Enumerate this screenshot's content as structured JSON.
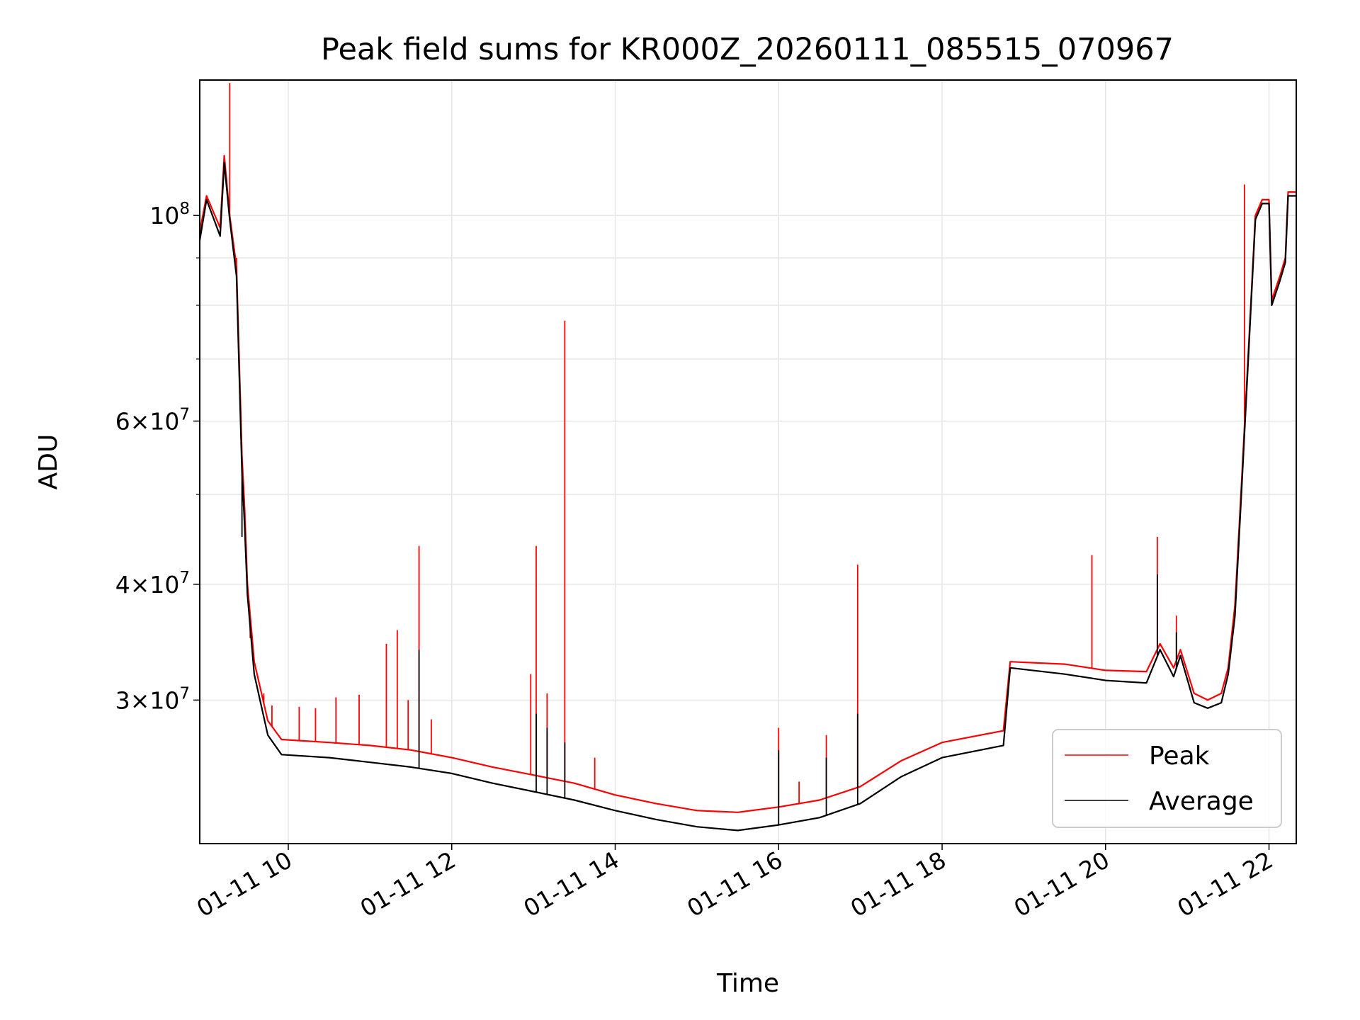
{
  "chart_data": {
    "type": "line",
    "title": "Peak field sums for KR000Z_20260111_085515_070967",
    "xlabel": "Time",
    "ylabel": "ADU",
    "yscale": "log",
    "xlim": [
      "01-11 08:55",
      "01-11 22:20"
    ],
    "ylim": [
      21000000,
      140000000
    ],
    "grid": true,
    "legend_position": "lower-right",
    "x_ticks": [
      {
        "value": "01-11 10:00",
        "label": "01-11 10"
      },
      {
        "value": "01-11 12:00",
        "label": "01-11 12"
      },
      {
        "value": "01-11 14:00",
        "label": "01-11 14"
      },
      {
        "value": "01-11 16:00",
        "label": "01-11 16"
      },
      {
        "value": "01-11 18:00",
        "label": "01-11 18"
      },
      {
        "value": "01-11 20:00",
        "label": "01-11 20"
      },
      {
        "value": "01-11 22:00",
        "label": "01-11 22"
      }
    ],
    "y_ticks_major": [
      {
        "value": 30000000,
        "mant": "3",
        "exp": "7"
      },
      {
        "value": 40000000,
        "mant": "4",
        "exp": "7"
      },
      {
        "value": 60000000,
        "mant": "6",
        "exp": "7"
      },
      {
        "value": 100000000,
        "mant": "",
        "exp": "8"
      }
    ],
    "y_ticks_minor": [
      50000000,
      70000000,
      80000000,
      90000000
    ],
    "series": [
      {
        "name": "Peak",
        "color": "#ff0000",
        "points": [
          [
            "01-11 08:55",
            96000000
          ],
          [
            "01-11 09:00",
            105000000
          ],
          [
            "01-11 09:10",
            97000000
          ],
          [
            "01-11 09:13",
            116000000
          ],
          [
            "01-11 09:17",
            100000000
          ],
          [
            "01-11 09:22",
            88000000
          ],
          [
            "01-11 09:26",
            55000000
          ],
          [
            "01-11 09:28",
            48000000
          ],
          [
            "01-11 09:30",
            40000000
          ],
          [
            "01-11 09:35",
            33000000
          ],
          [
            "01-11 09:45",
            28500000
          ],
          [
            "01-11 09:55",
            27200000
          ],
          [
            "01-11 10:30",
            27000000
          ],
          [
            "01-11 11:00",
            26800000
          ],
          [
            "01-11 11:30",
            26500000
          ],
          [
            "01-11 12:00",
            26000000
          ],
          [
            "01-11 12:30",
            25400000
          ],
          [
            "01-11 13:00",
            24900000
          ],
          [
            "01-11 13:30",
            24400000
          ],
          [
            "01-11 14:00",
            23700000
          ],
          [
            "01-11 14:30",
            23200000
          ],
          [
            "01-11 15:00",
            22800000
          ],
          [
            "01-11 15:30",
            22700000
          ],
          [
            "01-11 16:00",
            23000000
          ],
          [
            "01-11 16:30",
            23400000
          ],
          [
            "01-11 17:00",
            24200000
          ],
          [
            "01-11 17:30",
            25800000
          ],
          [
            "01-11 18:00",
            27000000
          ],
          [
            "01-11 18:45",
            27800000
          ],
          [
            "01-11 18:50",
            33000000
          ],
          [
            "01-11 19:30",
            32800000
          ],
          [
            "01-11 20:00",
            32300000
          ],
          [
            "01-11 20:30",
            32200000
          ],
          [
            "01-11 20:40",
            34500000
          ],
          [
            "01-11 20:50",
            32500000
          ],
          [
            "01-11 20:55",
            34000000
          ],
          [
            "01-11 21:05",
            30500000
          ],
          [
            "01-11 21:15",
            30000000
          ],
          [
            "01-11 21:25",
            30500000
          ],
          [
            "01-11 21:30",
            32500000
          ],
          [
            "01-11 21:35",
            38000000
          ],
          [
            "01-11 21:40",
            52000000
          ],
          [
            "01-11 21:45",
            72000000
          ],
          [
            "01-11 21:50",
            100000000
          ],
          [
            "01-11 21:55",
            104000000
          ],
          [
            "01-11 22:00",
            104000000
          ],
          [
            "01-11 22:02",
            81000000
          ],
          [
            "01-11 22:08",
            86000000
          ],
          [
            "01-11 22:12",
            90000000
          ],
          [
            "01-11 22:14",
            106000000
          ],
          [
            "01-11 22:20",
            106000000
          ]
        ],
        "spikes": [
          [
            "01-11 09:17",
            139000000
          ],
          [
            "01-11 09:22",
            90000000
          ],
          [
            "01-11 09:32",
            35000000
          ],
          [
            "01-11 09:42",
            30500000
          ],
          [
            "01-11 09:48",
            29600000
          ],
          [
            "01-11 10:08",
            29500000
          ],
          [
            "01-11 10:20",
            29400000
          ],
          [
            "01-11 10:35",
            30200000
          ],
          [
            "01-11 10:52",
            30400000
          ],
          [
            "01-11 11:12",
            34500000
          ],
          [
            "01-11 11:20",
            35700000
          ],
          [
            "01-11 11:28",
            30000000
          ],
          [
            "01-11 11:36",
            44000000
          ],
          [
            "01-11 11:45",
            28600000
          ],
          [
            "01-11 12:58",
            32000000
          ],
          [
            "01-11 13:02",
            44000000
          ],
          [
            "01-11 13:10",
            30500000
          ],
          [
            "01-11 13:23",
            77000000
          ],
          [
            "01-11 13:45",
            26000000
          ],
          [
            "01-11 16:00",
            28000000
          ],
          [
            "01-11 16:15",
            24500000
          ],
          [
            "01-11 16:35",
            27500000
          ],
          [
            "01-11 16:58",
            42000000
          ],
          [
            "01-11 19:50",
            43000000
          ],
          [
            "01-11 20:38",
            45000000
          ],
          [
            "01-11 20:52",
            37000000
          ],
          [
            "01-11 21:42",
            108000000
          ]
        ]
      },
      {
        "name": "Average",
        "color": "#000000",
        "points": [
          [
            "01-11 08:55",
            94000000
          ],
          [
            "01-11 09:00",
            104000000
          ],
          [
            "01-11 09:10",
            95000000
          ],
          [
            "01-11 09:13",
            114000000
          ],
          [
            "01-11 09:17",
            99000000
          ],
          [
            "01-11 09:22",
            86000000
          ],
          [
            "01-11 09:26",
            53000000
          ],
          [
            "01-11 09:28",
            46000000
          ],
          [
            "01-11 09:30",
            39000000
          ],
          [
            "01-11 09:35",
            32000000
          ],
          [
            "01-11 09:45",
            27500000
          ],
          [
            "01-11 09:55",
            26200000
          ],
          [
            "01-11 10:30",
            26000000
          ],
          [
            "01-11 11:00",
            25700000
          ],
          [
            "01-11 11:30",
            25400000
          ],
          [
            "01-11 12:00",
            25000000
          ],
          [
            "01-11 12:30",
            24400000
          ],
          [
            "01-11 13:00",
            23900000
          ],
          [
            "01-11 13:30",
            23400000
          ],
          [
            "01-11 14:00",
            22800000
          ],
          [
            "01-11 14:30",
            22300000
          ],
          [
            "01-11 15:00",
            21900000
          ],
          [
            "01-11 15:30",
            21700000
          ],
          [
            "01-11 16:00",
            22000000
          ],
          [
            "01-11 16:30",
            22400000
          ],
          [
            "01-11 17:00",
            23200000
          ],
          [
            "01-11 17:30",
            24800000
          ],
          [
            "01-11 18:00",
            26000000
          ],
          [
            "01-11 18:45",
            26800000
          ],
          [
            "01-11 18:50",
            32500000
          ],
          [
            "01-11 19:30",
            32000000
          ],
          [
            "01-11 20:00",
            31500000
          ],
          [
            "01-11 20:30",
            31300000
          ],
          [
            "01-11 20:40",
            34000000
          ],
          [
            "01-11 20:50",
            31800000
          ],
          [
            "01-11 20:55",
            33500000
          ],
          [
            "01-11 21:05",
            29800000
          ],
          [
            "01-11 21:15",
            29400000
          ],
          [
            "01-11 21:25",
            29800000
          ],
          [
            "01-11 21:30",
            32000000
          ],
          [
            "01-11 21:35",
            37000000
          ],
          [
            "01-11 21:40",
            51000000
          ],
          [
            "01-11 21:45",
            71000000
          ],
          [
            "01-11 21:50",
            99000000
          ],
          [
            "01-11 21:55",
            103000000
          ],
          [
            "01-11 22:00",
            103000000
          ],
          [
            "01-11 22:02",
            80000000
          ],
          [
            "01-11 22:08",
            85000000
          ],
          [
            "01-11 22:12",
            89000000
          ],
          [
            "01-11 22:14",
            105000000
          ],
          [
            "01-11 22:20",
            105000000
          ]
        ],
        "spikes": [
          [
            "01-11 09:26",
            45000000
          ],
          [
            "01-11 11:36",
            34000000
          ],
          [
            "01-11 13:02",
            29000000
          ],
          [
            "01-11 13:10",
            28000000
          ],
          [
            "01-11 13:23",
            27000000
          ],
          [
            "01-11 16:00",
            26500000
          ],
          [
            "01-11 16:35",
            26000000
          ],
          [
            "01-11 16:58",
            29000000
          ],
          [
            "01-11 20:38",
            41000000
          ],
          [
            "01-11 20:52",
            35500000
          ]
        ]
      }
    ]
  }
}
